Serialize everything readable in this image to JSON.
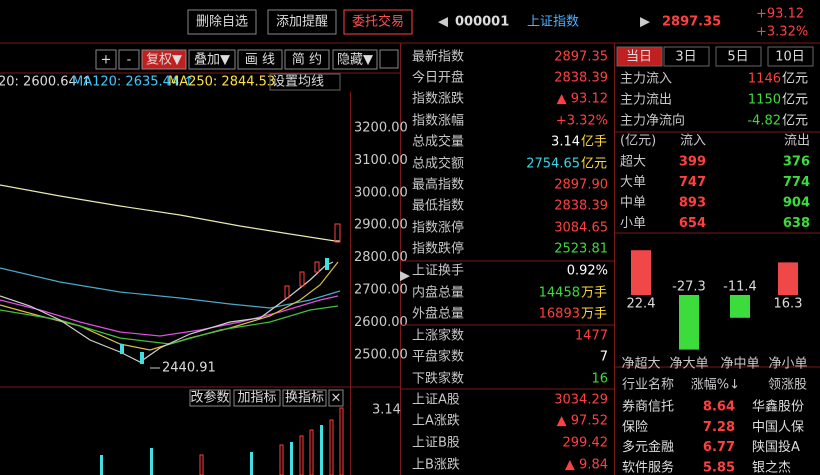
{
  "header": {
    "buttons": [
      "删除自选",
      "添加提醒",
      "委托交易"
    ],
    "code": "000001",
    "name": "上证指数",
    "price": "2897.35",
    "change": "+93.12",
    "change_pct": "+3.32%"
  },
  "chart_toolbar": [
    "+",
    "-",
    "复权▼",
    "叠加▼",
    "画 线",
    "简 约",
    "隐藏▼"
  ],
  "ma_legend": [
    "20: 2600.64 ↑",
    "MA120: 2635.44 ↑",
    "MA250: 2844.53",
    "设置均线"
  ],
  "price_axis": [
    "3200.00",
    "3100.00",
    "3000.00",
    "2900.00",
    "2800.00",
    "2700.00",
    "2600.00",
    "2500.00"
  ],
  "low_marker": "2440.91",
  "volume_toolbar": [
    "改参数",
    "加指标",
    "换指标",
    "×"
  ],
  "volume_axis": "3.14",
  "quote": {
    "rows": [
      {
        "label": "最新指数",
        "value": "2897.35",
        "color": "#ff4040"
      },
      {
        "label": "今日开盘",
        "value": "2838.39",
        "color": "#ff4040"
      },
      {
        "label": "指数涨跌",
        "value": "▲ 93.12",
        "color": "#ff4040"
      },
      {
        "label": "指数涨幅",
        "value": "+3.32%",
        "color": "#ff4040"
      },
      {
        "label": "总成交量",
        "value": "3.14",
        "unit": "亿手",
        "color": "#ffffff"
      },
      {
        "label": "总成交额",
        "value": "2754.65",
        "unit": "亿元",
        "color": "#35d7e8"
      },
      {
        "label": "最高指数",
        "value": "2897.90",
        "color": "#ff4040"
      },
      {
        "label": "最低指数",
        "value": "2838.39",
        "color": "#ff4040"
      },
      {
        "label": "指数涨停",
        "value": "3084.65",
        "color": "#ff4040"
      },
      {
        "label": "指数跌停",
        "value": "2523.81",
        "color": "#3cdc3c"
      },
      {
        "label": "上证换手",
        "value": "0.92%",
        "color": "#ffffff"
      },
      {
        "label": "内盘总量",
        "value": "14458",
        "unit": "万手",
        "color": "#3cdc3c"
      },
      {
        "label": "外盘总量",
        "value": "16893",
        "unit": "万手",
        "color": "#ff4040"
      },
      {
        "label": "上涨家数",
        "value": "1477",
        "color": "#ff4040"
      },
      {
        "label": "平盘家数",
        "value": "7",
        "color": "#ffffff"
      },
      {
        "label": "下跌家数",
        "value": "16",
        "color": "#3cdc3c"
      },
      {
        "label": "上证A股",
        "value": "3034.29",
        "color": "#ff4040"
      },
      {
        "label": "上A涨跌",
        "value": "▲ 97.52",
        "color": "#ff4040"
      },
      {
        "label": "上证B股",
        "value": "299.42",
        "color": "#ff4040"
      },
      {
        "label": "上B涨跌",
        "value": "▲ 9.84",
        "color": "#ff4040"
      }
    ]
  },
  "flow": {
    "tabs": [
      "当日",
      "3日",
      "5日",
      "10日"
    ],
    "main": [
      {
        "label": "主力流入",
        "value": "1146",
        "unit": "亿元",
        "color": "#ff4040"
      },
      {
        "label": "主力流出",
        "value": "1150",
        "unit": "亿元",
        "color": "#3cdc3c"
      },
      {
        "label": "主力净流向",
        "value": "-4.82",
        "unit": "亿元",
        "color": "#3cdc3c"
      }
    ],
    "table_header": [
      "(亿元)",
      "流入",
      "流出"
    ],
    "table_rows": [
      [
        "超大",
        "399",
        "376"
      ],
      [
        "大单",
        "747",
        "774"
      ],
      [
        "中单",
        "893",
        "904"
      ],
      [
        "小单",
        "654",
        "638"
      ]
    ]
  },
  "flow_chart": {
    "type": "bar",
    "categories": [
      "净超大",
      "净大单",
      "净中单",
      "净小单"
    ],
    "values": [
      22.4,
      -27.3,
      -11.4,
      16.3
    ],
    "colors": [
      "#f04848",
      "#3cdc3c",
      "#3cdc3c",
      "#f04848"
    ]
  },
  "sectors": {
    "header": [
      "行业名称",
      "涨幅%↓",
      "领涨股"
    ],
    "rows": [
      [
        "券商信托",
        "8.64",
        "华鑫股份"
      ],
      [
        "保险",
        "7.28",
        "中国人保"
      ],
      [
        "多元金融",
        "6.77",
        "陕国投A"
      ],
      [
        "软件服务",
        "5.85",
        "银之杰"
      ]
    ]
  }
}
